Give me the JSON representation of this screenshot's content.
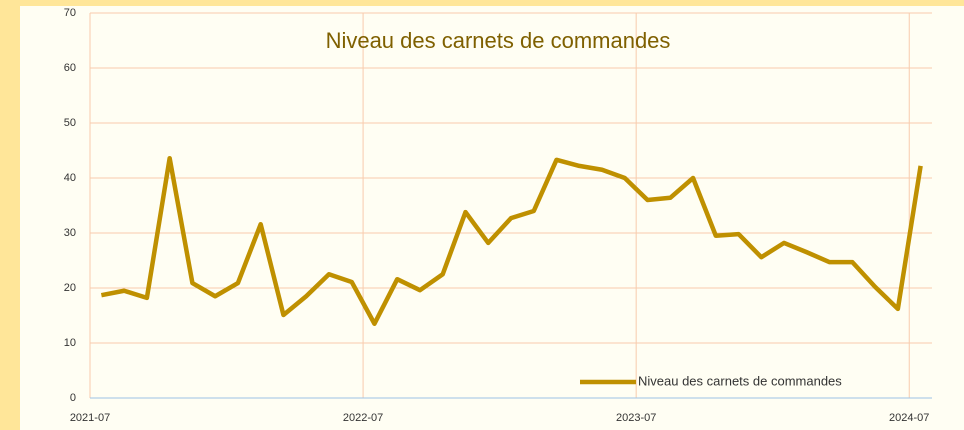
{
  "chart_data": {
    "type": "line",
    "title": "Niveau des carnets de commandes",
    "categories": [
      "2021-07",
      null,
      null,
      null,
      null,
      null,
      null,
      null,
      null,
      null,
      null,
      null,
      "2022-07",
      null,
      null,
      null,
      null,
      null,
      null,
      null,
      null,
      null,
      null,
      null,
      "2023-07",
      null,
      null,
      null,
      null,
      null,
      null,
      null,
      null,
      null,
      null,
      null,
      "2024-07"
    ],
    "series": [
      {
        "name": "Niveau des carnets de commandes",
        "color": "#bf9000",
        "values": [
          18.7,
          19.5,
          18.2,
          43.6,
          20.9,
          18.5,
          20.9,
          31.6,
          15.1,
          18.5,
          22.5,
          21.1,
          13.5,
          21.6,
          19.6,
          22.5,
          33.8,
          28.2,
          32.7,
          34.0,
          43.3,
          42.2,
          41.5,
          40.0,
          36.0,
          36.4,
          40.0,
          29.5,
          29.8,
          25.6,
          28.2,
          26.5,
          24.7,
          24.7,
          20.2,
          16.2,
          42.2
        ]
      }
    ],
    "ylim": [
      0,
      70
    ],
    "yticks": [
      0,
      10,
      20,
      30,
      40,
      50,
      60,
      70
    ],
    "grid": true,
    "legend": "bottom-right"
  }
}
